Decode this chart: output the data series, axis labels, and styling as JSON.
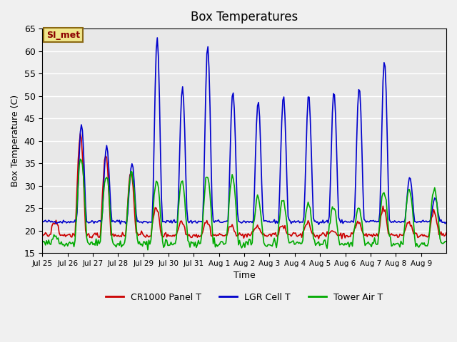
{
  "title": "Box Temperatures",
  "xlabel": "Time",
  "ylabel": "Box Temperature (C)",
  "ylim": [
    15,
    65
  ],
  "yticks": [
    15,
    20,
    25,
    30,
    35,
    40,
    45,
    50,
    55,
    60,
    65
  ],
  "background_color": "#e8e8e8",
  "annotation_text": "SI_met",
  "annotation_bg": "#f0e68c",
  "annotation_border": "#8b6914",
  "annotation_text_color": "#8b0000",
  "series": {
    "panel": {
      "color": "#cc0000",
      "label": "CR1000 Panel T",
      "linewidth": 1.2
    },
    "lgr": {
      "color": "#0000cc",
      "label": "LGR Cell T",
      "linewidth": 1.2
    },
    "tower": {
      "color": "#00aa00",
      "label": "Tower Air T",
      "linewidth": 1.2
    }
  },
  "xtick_labels": [
    "Jul 25",
    "Jul 26",
    "Jul 27",
    "Jul 28",
    "Jul 29",
    "Jul 30",
    "Jul 31",
    "Aug 1",
    "Aug 2",
    "Aug 3",
    "Aug 4",
    "Aug 5",
    "Aug 6",
    "Aug 7",
    "Aug 8",
    "Aug 9"
  ],
  "grid_color": "#ffffff",
  "grid_linewidth": 1.0,
  "n_days": 16
}
